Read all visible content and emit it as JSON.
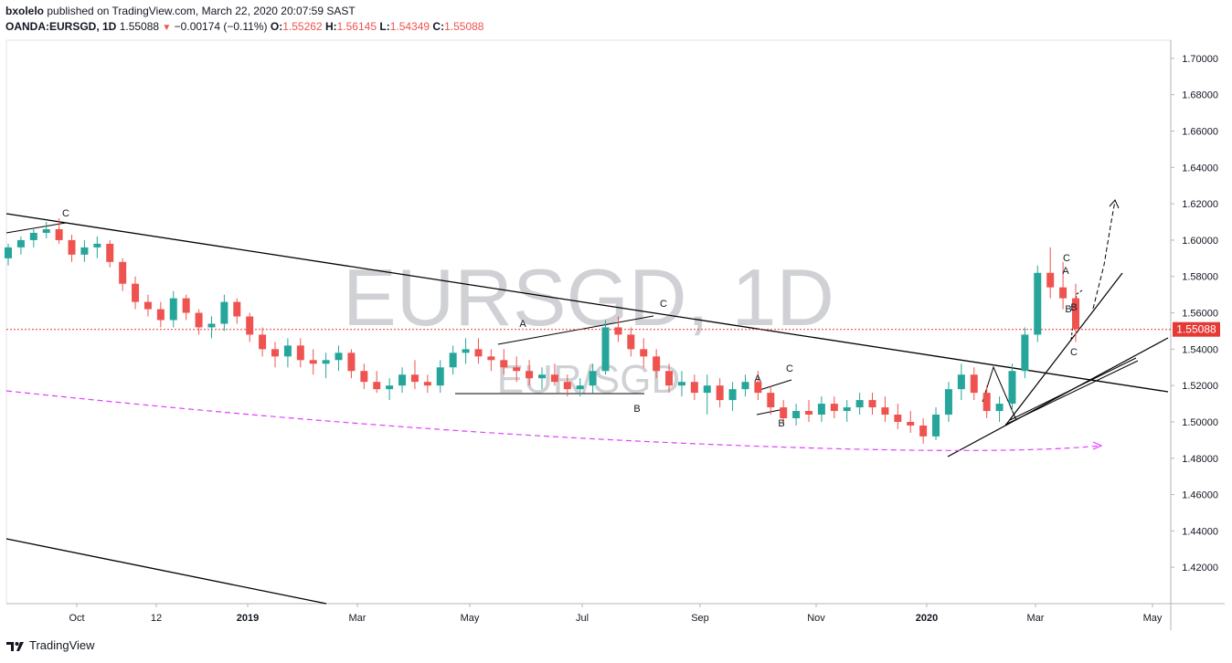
{
  "header": {
    "author": "bxolelo",
    "published_text": "published on TradingView.com, March 22, 2020 20:07:59 SAST",
    "symbol": "OANDA:EURSGD, 1D",
    "last": "1.55088",
    "change": "−0.00174 (−0.11%)",
    "o_label": "O:",
    "o_value": "1.55262",
    "h_label": "H:",
    "h_value": "1.56145",
    "l_label": "L:",
    "l_value": "1.54349",
    "c_label": "C:",
    "c_value": "1.55088"
  },
  "watermark": {
    "main": "EURSGD, 1D",
    "sub": "EUR/SGD"
  },
  "footer": {
    "brand": "TradingView"
  },
  "colors": {
    "up": "#26a69a",
    "down": "#ef5350",
    "price_line": "#e53935",
    "ma": "#e040fb",
    "watermark": "rgba(120,123,134,0.35)",
    "axis_text": "#131722"
  },
  "chart_data": {
    "type": "candlestick",
    "ylim": [
      1.4,
      1.71
    ],
    "y_ticks": [
      "1.70000",
      "1.68000",
      "1.66000",
      "1.64000",
      "1.62000",
      "1.60000",
      "1.58000",
      "1.56000",
      "1.54000",
      "1.52000",
      "1.50000",
      "1.48000",
      "1.46000",
      "1.44000",
      "1.42000"
    ],
    "x_labels": [
      "Oct",
      "12",
      "2019",
      "Mar",
      "May",
      "Jul",
      "Sep",
      "Nov",
      "2020",
      "Mar",
      "May"
    ],
    "last_price": "1.55088",
    "series": [
      {
        "values": [
          [
            1.59,
            1.598,
            1.586,
            1.596
          ],
          [
            1.596,
            1.602,
            1.592,
            1.6
          ],
          [
            1.6,
            1.606,
            1.596,
            1.604
          ],
          [
            1.604,
            1.61,
            1.601,
            1.606
          ],
          [
            1.606,
            1.612,
            1.598,
            1.6
          ],
          [
            1.6,
            1.603,
            1.588,
            1.592
          ],
          [
            1.592,
            1.6,
            1.588,
            1.596
          ],
          [
            1.596,
            1.602,
            1.59,
            1.598
          ],
          [
            1.598,
            1.6,
            1.585,
            1.588
          ],
          [
            1.588,
            1.59,
            1.572,
            1.576
          ],
          [
            1.576,
            1.58,
            1.562,
            1.566
          ],
          [
            1.566,
            1.57,
            1.558,
            1.562
          ],
          [
            1.562,
            1.566,
            1.552,
            1.556
          ],
          [
            1.556,
            1.572,
            1.552,
            1.568
          ],
          [
            1.568,
            1.57,
            1.556,
            1.56
          ],
          [
            1.56,
            1.562,
            1.548,
            1.552
          ],
          [
            1.552,
            1.558,
            1.546,
            1.554
          ],
          [
            1.554,
            1.57,
            1.55,
            1.566
          ],
          [
            1.566,
            1.568,
            1.554,
            1.558
          ],
          [
            1.558,
            1.56,
            1.544,
            1.548
          ],
          [
            1.548,
            1.552,
            1.536,
            1.54
          ],
          [
            1.54,
            1.544,
            1.53,
            1.536
          ],
          [
            1.536,
            1.546,
            1.53,
            1.542
          ],
          [
            1.542,
            1.546,
            1.53,
            1.534
          ],
          [
            1.534,
            1.54,
            1.526,
            1.532
          ],
          [
            1.532,
            1.538,
            1.524,
            1.534
          ],
          [
            1.534,
            1.542,
            1.528,
            1.538
          ],
          [
            1.538,
            1.54,
            1.524,
            1.528
          ],
          [
            1.528,
            1.532,
            1.518,
            1.522
          ],
          [
            1.522,
            1.528,
            1.516,
            1.518
          ],
          [
            1.518,
            1.524,
            1.512,
            1.52
          ],
          [
            1.52,
            1.53,
            1.516,
            1.526
          ],
          [
            1.526,
            1.534,
            1.518,
            1.522
          ],
          [
            1.522,
            1.526,
            1.516,
            1.52
          ],
          [
            1.52,
            1.534,
            1.516,
            1.53
          ],
          [
            1.53,
            1.542,
            1.526,
            1.538
          ],
          [
            1.538,
            1.546,
            1.532,
            1.54
          ],
          [
            1.54,
            1.546,
            1.532,
            1.536
          ],
          [
            1.536,
            1.54,
            1.528,
            1.534
          ],
          [
            1.534,
            1.54,
            1.526,
            1.53
          ],
          [
            1.53,
            1.536,
            1.522,
            1.528
          ],
          [
            1.528,
            1.534,
            1.52,
            1.524
          ],
          [
            1.524,
            1.53,
            1.518,
            1.526
          ],
          [
            1.526,
            1.532,
            1.52,
            1.522
          ],
          [
            1.522,
            1.526,
            1.514,
            1.518
          ],
          [
            1.518,
            1.524,
            1.514,
            1.52
          ],
          [
            1.52,
            1.532,
            1.516,
            1.528
          ],
          [
            1.528,
            1.556,
            1.526,
            1.552
          ],
          [
            1.552,
            1.558,
            1.544,
            1.548
          ],
          [
            1.548,
            1.552,
            1.536,
            1.54
          ],
          [
            1.54,
            1.546,
            1.53,
            1.536
          ],
          [
            1.536,
            1.54,
            1.524,
            1.528
          ],
          [
            1.528,
            1.532,
            1.516,
            1.52
          ],
          [
            1.52,
            1.528,
            1.514,
            1.522
          ],
          [
            1.522,
            1.526,
            1.512,
            1.516
          ],
          [
            1.516,
            1.526,
            1.504,
            1.52
          ],
          [
            1.52,
            1.524,
            1.508,
            1.512
          ],
          [
            1.512,
            1.522,
            1.506,
            1.518
          ],
          [
            1.518,
            1.526,
            1.514,
            1.522
          ],
          [
            1.522,
            1.528,
            1.512,
            1.516
          ],
          [
            1.516,
            1.52,
            1.504,
            1.508
          ],
          [
            1.508,
            1.512,
            1.498,
            1.502
          ],
          [
            1.502,
            1.51,
            1.498,
            1.506
          ],
          [
            1.506,
            1.512,
            1.5,
            1.504
          ],
          [
            1.504,
            1.514,
            1.5,
            1.51
          ],
          [
            1.51,
            1.514,
            1.502,
            1.506
          ],
          [
            1.506,
            1.512,
            1.5,
            1.508
          ],
          [
            1.508,
            1.516,
            1.504,
            1.512
          ],
          [
            1.512,
            1.516,
            1.504,
            1.508
          ],
          [
            1.508,
            1.514,
            1.5,
            1.504
          ],
          [
            1.504,
            1.51,
            1.496,
            1.5
          ],
          [
            1.5,
            1.506,
            1.494,
            1.498
          ],
          [
            1.498,
            1.502,
            1.488,
            1.492
          ],
          [
            1.492,
            1.508,
            1.49,
            1.504
          ],
          [
            1.504,
            1.522,
            1.5,
            1.518
          ],
          [
            1.518,
            1.532,
            1.512,
            1.526
          ],
          [
            1.526,
            1.53,
            1.512,
            1.516
          ],
          [
            1.516,
            1.52,
            1.502,
            1.506
          ],
          [
            1.506,
            1.514,
            1.5,
            1.51
          ],
          [
            1.51,
            1.532,
            1.506,
            1.528
          ],
          [
            1.528,
            1.552,
            1.524,
            1.548
          ],
          [
            1.548,
            1.586,
            1.544,
            1.582
          ],
          [
            1.582,
            1.596,
            1.568,
            1.574
          ],
          [
            1.574,
            1.588,
            1.562,
            1.568
          ],
          [
            1.568,
            1.576,
            1.544,
            1.551
          ]
        ]
      }
    ],
    "annotations": [
      {
        "text": "C",
        "type": "wave_label"
      },
      {
        "text": "A",
        "type": "wave_label"
      },
      {
        "text": "B",
        "type": "wave_label"
      },
      {
        "text": "C",
        "type": "wave_label"
      },
      {
        "text": "A",
        "type": "wave_label"
      },
      {
        "text": "B",
        "type": "wave_label"
      },
      {
        "text": "C",
        "type": "wave_label"
      },
      {
        "text": "C",
        "type": "wave_label"
      },
      {
        "text": "A",
        "type": "wave_label"
      },
      {
        "text": "B",
        "type": "wave_label"
      },
      {
        "text": "B",
        "type": "wave_label"
      },
      {
        "text": "C",
        "type": "wave_label"
      }
    ]
  }
}
